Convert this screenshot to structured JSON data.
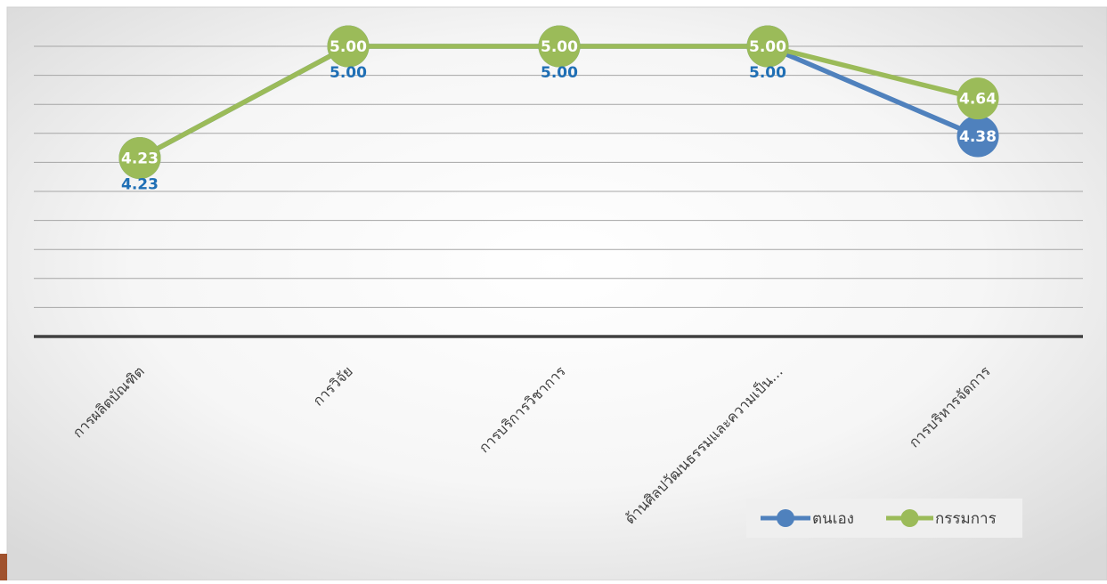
{
  "chart_data": {
    "type": "line",
    "title": "",
    "xlabel": "",
    "ylabel": "",
    "categories": [
      "การผลิตบัณฑิต",
      "การวิจัย",
      "การบริการวิชาการ",
      "ด้านศิลปวัฒนธรรมและความเป็น…",
      "การบริหารจัดการ"
    ],
    "series": [
      {
        "name": "ตนเอง",
        "values": [
          4.23,
          5.0,
          5.0,
          5.0,
          4.38
        ],
        "labels": [
          "4.23",
          "5.00",
          "5.00",
          "5.00",
          "4.38"
        ],
        "color": "#4f81bd"
      },
      {
        "name": "กรรมการ",
        "values": [
          4.23,
          5.0,
          5.0,
          5.0,
          4.64
        ],
        "labels": [
          "4.23",
          "5.00",
          "5.00",
          "5.00",
          "4.64"
        ],
        "color": "#9bbb59"
      }
    ],
    "ylim": [
      3.0,
      5.2
    ],
    "grid": true,
    "legend_position": "bottom-right",
    "label_color": "#1f6fb5",
    "axis_color": "#404040",
    "grid_color": "#a6a6a6"
  }
}
